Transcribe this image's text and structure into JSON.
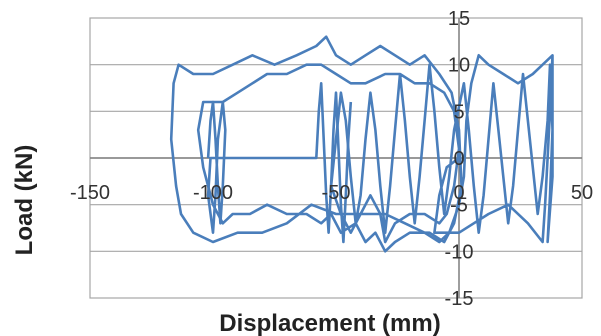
{
  "chart_data": {
    "type": "line",
    "title": "",
    "xlabel": "Displacement (mm)",
    "ylabel": "Load (kN)",
    "xlim": [
      -150,
      50
    ],
    "ylim": [
      -15,
      15
    ],
    "x_ticks": [
      -150,
      -100,
      -50,
      0,
      50
    ],
    "y_ticks": [
      -15,
      -10,
      -5,
      0,
      5,
      10,
      15
    ],
    "x_tick_labels": [
      "-150",
      "-100",
      "-50",
      "0",
      "50"
    ],
    "y_tick_labels": [
      "-15",
      "-10",
      "-5",
      "0",
      "5",
      "10",
      "15"
    ],
    "grid": "horizontal",
    "legend": "none",
    "series_color": "#4a7ebb",
    "grid_color": "#a6a6a6",
    "axis_color": "#7f7f7f",
    "series": [
      {
        "values": [
          [
            0,
            0
          ],
          [
            -5,
            -1
          ],
          [
            -8,
            -4
          ],
          [
            -10,
            -8
          ],
          [
            -6,
            -8
          ],
          [
            0,
            -8
          ],
          [
            6,
            -7
          ],
          [
            12,
            -6
          ],
          [
            20,
            -5
          ],
          [
            28,
            -7
          ],
          [
            34,
            -9
          ],
          [
            35,
            -5
          ],
          [
            36,
            0
          ],
          [
            37,
            5
          ],
          [
            38,
            11
          ],
          [
            34,
            10
          ],
          [
            30,
            9
          ],
          [
            24,
            8
          ],
          [
            18,
            9
          ],
          [
            12,
            10
          ],
          [
            8,
            11
          ],
          [
            5,
            8
          ],
          [
            3,
            4
          ],
          [
            2,
            -2
          ],
          [
            0,
            -5
          ],
          [
            -4,
            -8
          ],
          [
            -8,
            -9
          ],
          [
            -14,
            -8
          ],
          [
            -22,
            -7
          ],
          [
            -30,
            -6
          ],
          [
            -40,
            -6
          ],
          [
            -50,
            -6
          ],
          [
            -60,
            -5
          ],
          [
            -70,
            -7
          ],
          [
            -80,
            -8
          ],
          [
            -90,
            -8
          ],
          [
            -100,
            -9
          ],
          [
            -108,
            -8
          ],
          [
            -113,
            -6
          ],
          [
            -115,
            -3
          ],
          [
            -117,
            2
          ],
          [
            -116,
            8
          ],
          [
            -114,
            10
          ],
          [
            -108,
            9
          ],
          [
            -100,
            9
          ],
          [
            -92,
            10
          ],
          [
            -84,
            11
          ],
          [
            -75,
            10
          ],
          [
            -66,
            11
          ],
          [
            -58,
            12
          ],
          [
            -54,
            13
          ],
          [
            -50,
            11
          ],
          [
            -44,
            10
          ],
          [
            -38,
            11
          ],
          [
            -32,
            12
          ],
          [
            -26,
            11
          ],
          [
            -20,
            10
          ],
          [
            -14,
            11
          ],
          [
            -8,
            9
          ],
          [
            -3,
            7
          ],
          [
            0,
            3
          ],
          [
            1,
            -3
          ],
          [
            -2,
            -7
          ],
          [
            -6,
            -9
          ],
          [
            -12,
            -8
          ],
          [
            -20,
            -8
          ],
          [
            -26,
            -9
          ],
          [
            -30,
            -10
          ],
          [
            -34,
            -8
          ],
          [
            -38,
            -9
          ],
          [
            -42,
            -7
          ],
          [
            -48,
            -8
          ],
          [
            -52,
            -6
          ],
          [
            -56,
            -7
          ],
          [
            -62,
            -6
          ],
          [
            -70,
            -6
          ],
          [
            -78,
            -5
          ],
          [
            -85,
            -6
          ],
          [
            -92,
            -6
          ],
          [
            -96,
            -7
          ],
          [
            -100,
            -5
          ],
          [
            -104,
            -1
          ],
          [
            -106,
            3
          ],
          [
            -104,
            6
          ],
          [
            -100,
            6
          ],
          [
            -96,
            6
          ],
          [
            -90,
            7
          ],
          [
            -84,
            8
          ],
          [
            -78,
            9
          ],
          [
            -70,
            9
          ],
          [
            -62,
            10
          ],
          [
            -56,
            10
          ],
          [
            -50,
            9
          ],
          [
            -44,
            8
          ],
          [
            -38,
            8
          ],
          [
            -30,
            9
          ],
          [
            -24,
            9
          ],
          [
            -18,
            8
          ],
          [
            -12,
            8
          ],
          [
            -6,
            7
          ],
          [
            -2,
            5
          ],
          [
            0,
            1
          ],
          [
            -2,
            -3
          ],
          [
            -5,
            -6
          ],
          [
            -8,
            -7
          ],
          [
            -14,
            -6
          ],
          [
            -20,
            -6
          ],
          [
            -26,
            -7
          ],
          [
            -30,
            -9
          ],
          [
            -32,
            -6
          ],
          [
            -36,
            -4
          ],
          [
            -40,
            -6
          ],
          [
            -44,
            -8
          ],
          [
            -48,
            -6
          ],
          [
            -52,
            -3
          ],
          [
            -50,
            2
          ],
          [
            -48,
            7
          ],
          [
            -46,
            4
          ],
          [
            -44,
            -2
          ],
          [
            -42,
            -7
          ],
          [
            -40,
            -4
          ],
          [
            -38,
            2
          ],
          [
            -36,
            7
          ],
          [
            -34,
            3
          ],
          [
            -32,
            -3
          ],
          [
            -30,
            -8
          ],
          [
            -28,
            -3
          ],
          [
            -26,
            3
          ],
          [
            -24,
            9
          ],
          [
            -22,
            4
          ],
          [
            -20,
            -2
          ],
          [
            -18,
            -7
          ],
          [
            -16,
            -2
          ],
          [
            -14,
            4
          ],
          [
            -12,
            10
          ],
          [
            -10,
            5
          ],
          [
            -8,
            -1
          ],
          [
            -6,
            -6
          ],
          [
            -4,
            -2
          ],
          [
            -2,
            3
          ],
          [
            2,
            8
          ],
          [
            4,
            3
          ],
          [
            6,
            -3
          ],
          [
            8,
            -8
          ],
          [
            10,
            -4
          ],
          [
            12,
            2
          ],
          [
            14,
            8
          ],
          [
            16,
            3
          ],
          [
            18,
            -2
          ],
          [
            20,
            -7
          ],
          [
            22,
            -3
          ],
          [
            24,
            3
          ],
          [
            26,
            9
          ],
          [
            28,
            4
          ],
          [
            30,
            -1
          ],
          [
            32,
            -6
          ],
          [
            34,
            -2
          ],
          [
            36,
            4
          ],
          [
            37,
            10
          ],
          [
            38,
            3
          ],
          [
            37,
            -4
          ],
          [
            36,
            -9
          ],
          [
            38,
            -2
          ],
          [
            38,
            11
          ]
        ]
      },
      {
        "values": [
          [
            -102,
            0
          ],
          [
            -101,
            4
          ],
          [
            -100,
            6
          ],
          [
            -99,
            2
          ],
          [
            -98,
            -3
          ],
          [
            -97,
            -7
          ],
          [
            -96,
            -3
          ],
          [
            -95,
            3
          ],
          [
            -96,
            6
          ],
          [
            -98,
            2
          ],
          [
            -99,
            -4
          ],
          [
            -100,
            -8
          ],
          [
            -102,
            -4
          ],
          [
            -101,
            0
          ],
          [
            -58,
            0
          ],
          [
            -57,
            5
          ],
          [
            -56,
            8
          ],
          [
            -55,
            2
          ],
          [
            -54,
            -4
          ],
          [
            -53,
            -8
          ],
          [
            -52,
            -3
          ],
          [
            -51,
            3
          ],
          [
            -50,
            7
          ],
          [
            -49,
            1
          ],
          [
            -48,
            -5
          ],
          [
            -47,
            -9
          ],
          [
            -46,
            -4
          ],
          [
            -45,
            2
          ],
          [
            -44,
            6
          ]
        ]
      }
    ]
  }
}
